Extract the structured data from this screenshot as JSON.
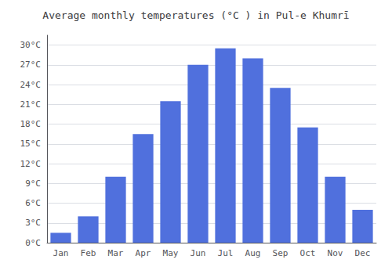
{
  "chart_data": {
    "type": "bar",
    "title": "Average monthly temperatures (°C ) in Pul-e Khumrī",
    "categories": [
      "Jan",
      "Feb",
      "Mar",
      "Apr",
      "May",
      "Jun",
      "Jul",
      "Aug",
      "Sep",
      "Oct",
      "Nov",
      "Dec"
    ],
    "values": [
      1.5,
      4.0,
      10.0,
      16.5,
      21.5,
      27.0,
      29.5,
      28.0,
      23.5,
      17.5,
      10.0,
      5.0
    ],
    "ylim": [
      0,
      31.5
    ],
    "yticks": [
      {
        "value": 0,
        "label": "0°C"
      },
      {
        "value": 3,
        "label": "3°C"
      },
      {
        "value": 6,
        "label": "6°C"
      },
      {
        "value": 9,
        "label": "9°C"
      },
      {
        "value": 12,
        "label": "12°C"
      },
      {
        "value": 15,
        "label": "15°C"
      },
      {
        "value": 18,
        "label": "18°C"
      },
      {
        "value": 21,
        "label": "21°C"
      },
      {
        "value": 24,
        "label": "24°C"
      },
      {
        "value": 27,
        "label": "27°C"
      },
      {
        "value": 30,
        "label": "30°C"
      }
    ],
    "grid": true
  }
}
